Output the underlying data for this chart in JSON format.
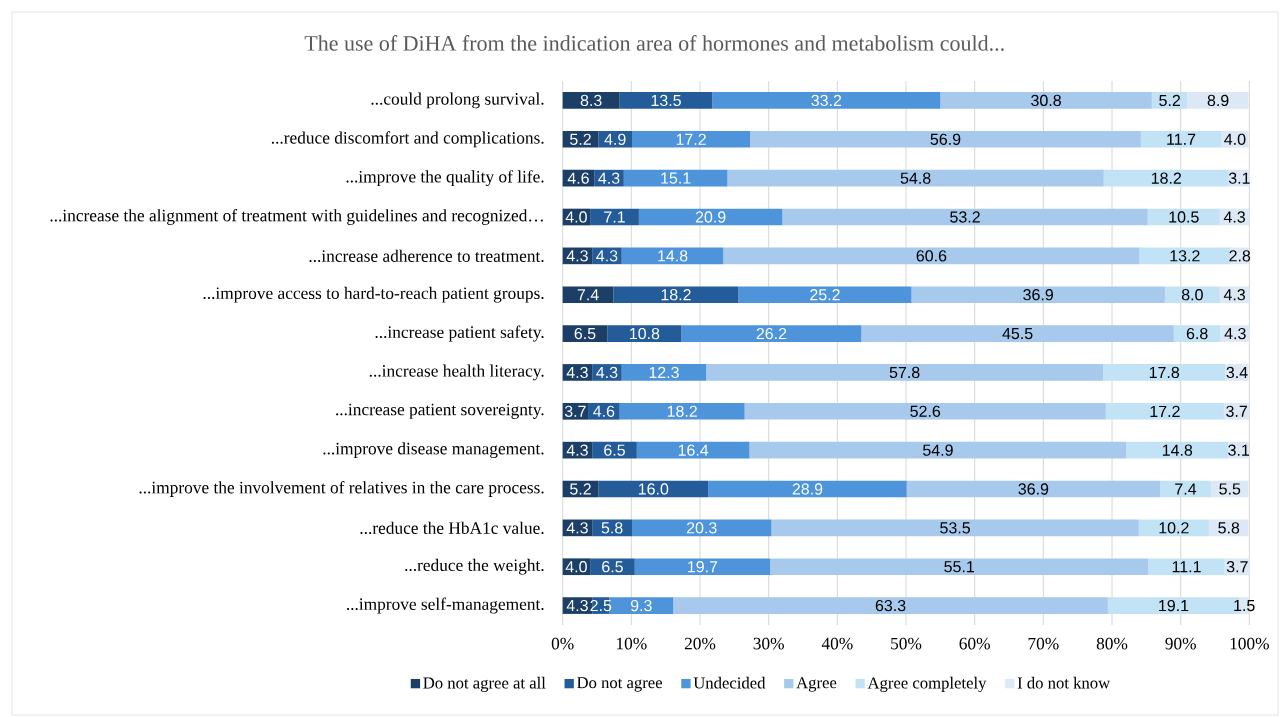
{
  "chart_data": {
    "type": "bar",
    "orientation": "horizontal",
    "stacked": true,
    "title": "The use of DiHA from the indication area of hormones and metabolism could...",
    "categories": [
      "...could prolong survival.",
      "...reduce discomfort and complications.",
      "...improve the quality of life.",
      "...increase the alignment of treatment with guidelines and recognized…",
      "...increase adherence to treatment.",
      "...improve access to hard-to-reach patient groups.",
      "...increase patient safety.",
      "...increase health literacy.",
      "...increase patient sovereignty.",
      "...improve disease management.",
      "...improve the involvement of relatives in the care process.",
      "...reduce the HbA1c value.",
      "...reduce the weight.",
      "...improve self-management."
    ],
    "series": [
      {
        "name": "Do not agree at all",
        "color": "#1b3f66",
        "values": [
          8.3,
          5.2,
          4.6,
          4.0,
          4.3,
          7.4,
          6.5,
          4.3,
          3.7,
          4.3,
          5.2,
          4.3,
          4.0,
          4.3
        ],
        "value_labels": [
          "8.3",
          "5.2",
          "4.6",
          "4.0",
          "4.3",
          "7.4",
          "6.5",
          "4.3",
          "3.7",
          "4.3",
          "5.2",
          "4.3",
          "4.0",
          "4.3"
        ]
      },
      {
        "name": "Do not agree",
        "color": "#235c98",
        "values": [
          13.5,
          4.9,
          4.3,
          7.1,
          4.3,
          18.2,
          10.8,
          4.3,
          4.6,
          6.5,
          16.0,
          5.8,
          6.5,
          2.5
        ],
        "value_labels": [
          "13.5",
          "4.9",
          "4.3",
          "7.1",
          "4.3",
          "18.2",
          "10.8",
          "4.3",
          "4.6",
          "6.5",
          "16.0",
          "5.8",
          "6.5",
          "2.5"
        ]
      },
      {
        "name": "Undecided",
        "color": "#4d94da",
        "values": [
          33.2,
          17.2,
          15.1,
          20.9,
          14.8,
          25.2,
          26.2,
          12.3,
          18.2,
          16.4,
          28.9,
          20.3,
          19.7,
          9.3
        ],
        "value_labels": [
          "33.2",
          "17.2",
          "15.1",
          "20.9",
          "14.8",
          "25.2",
          "26.2",
          "12.3",
          "18.2",
          "16.4",
          "28.9",
          "20.3",
          "19.7",
          "9.3"
        ]
      },
      {
        "name": "Agree",
        "color": "#a6c9ec",
        "values": [
          30.8,
          56.9,
          54.8,
          53.2,
          60.6,
          36.9,
          45.5,
          57.8,
          52.6,
          54.9,
          36.9,
          53.5,
          55.1,
          63.3
        ],
        "value_labels": [
          "30.8",
          "56.9",
          "54.8",
          "53.2",
          "60.6",
          "36.9",
          "45.5",
          "57.8",
          "52.6",
          "54.9",
          "36.9",
          "53.5",
          "55.1",
          "63.3"
        ]
      },
      {
        "name": "Agree completely",
        "color": "#c2e3f5",
        "values": [
          5.2,
          11.7,
          18.2,
          10.5,
          13.2,
          8.0,
          6.8,
          17.8,
          17.2,
          14.8,
          7.4,
          10.2,
          11.1,
          19.1
        ],
        "value_labels": [
          "5.2",
          "11.7",
          "18.2",
          "10.5",
          "13.2",
          "8.0",
          "6.8",
          "17.8",
          "17.2",
          "14.8",
          "7.4",
          "10.2",
          "11.1",
          "19.1"
        ]
      },
      {
        "name": "I do not know",
        "color": "#dde8f6",
        "values": [
          8.9,
          4.0,
          3.1,
          4.3,
          2.8,
          4.3,
          4.3,
          3.4,
          3.7,
          3.1,
          5.5,
          5.8,
          3.7,
          1.5
        ],
        "value_labels": [
          "8.9",
          "4.0",
          "3.1",
          "4.3",
          "2.8",
          "4.3",
          "4.3",
          "3.4",
          "3.7",
          "3.1",
          "5.5",
          "5.8",
          "3.7",
          "1.5"
        ]
      }
    ],
    "xlim": [
      0,
      100
    ],
    "xticks": [
      {
        "value": 0,
        "label": "0%"
      },
      {
        "value": 10,
        "label": "10%"
      },
      {
        "value": 20,
        "label": "20%"
      },
      {
        "value": 30,
        "label": "30%"
      },
      {
        "value": 40,
        "label": "40%"
      },
      {
        "value": 50,
        "label": "50%"
      },
      {
        "value": 60,
        "label": "60%"
      },
      {
        "value": 70,
        "label": "70%"
      },
      {
        "value": 80,
        "label": "80%"
      },
      {
        "value": 90,
        "label": "90%"
      },
      {
        "value": 100,
        "label": "100%"
      }
    ],
    "grid": "x",
    "legend": "bottom"
  }
}
